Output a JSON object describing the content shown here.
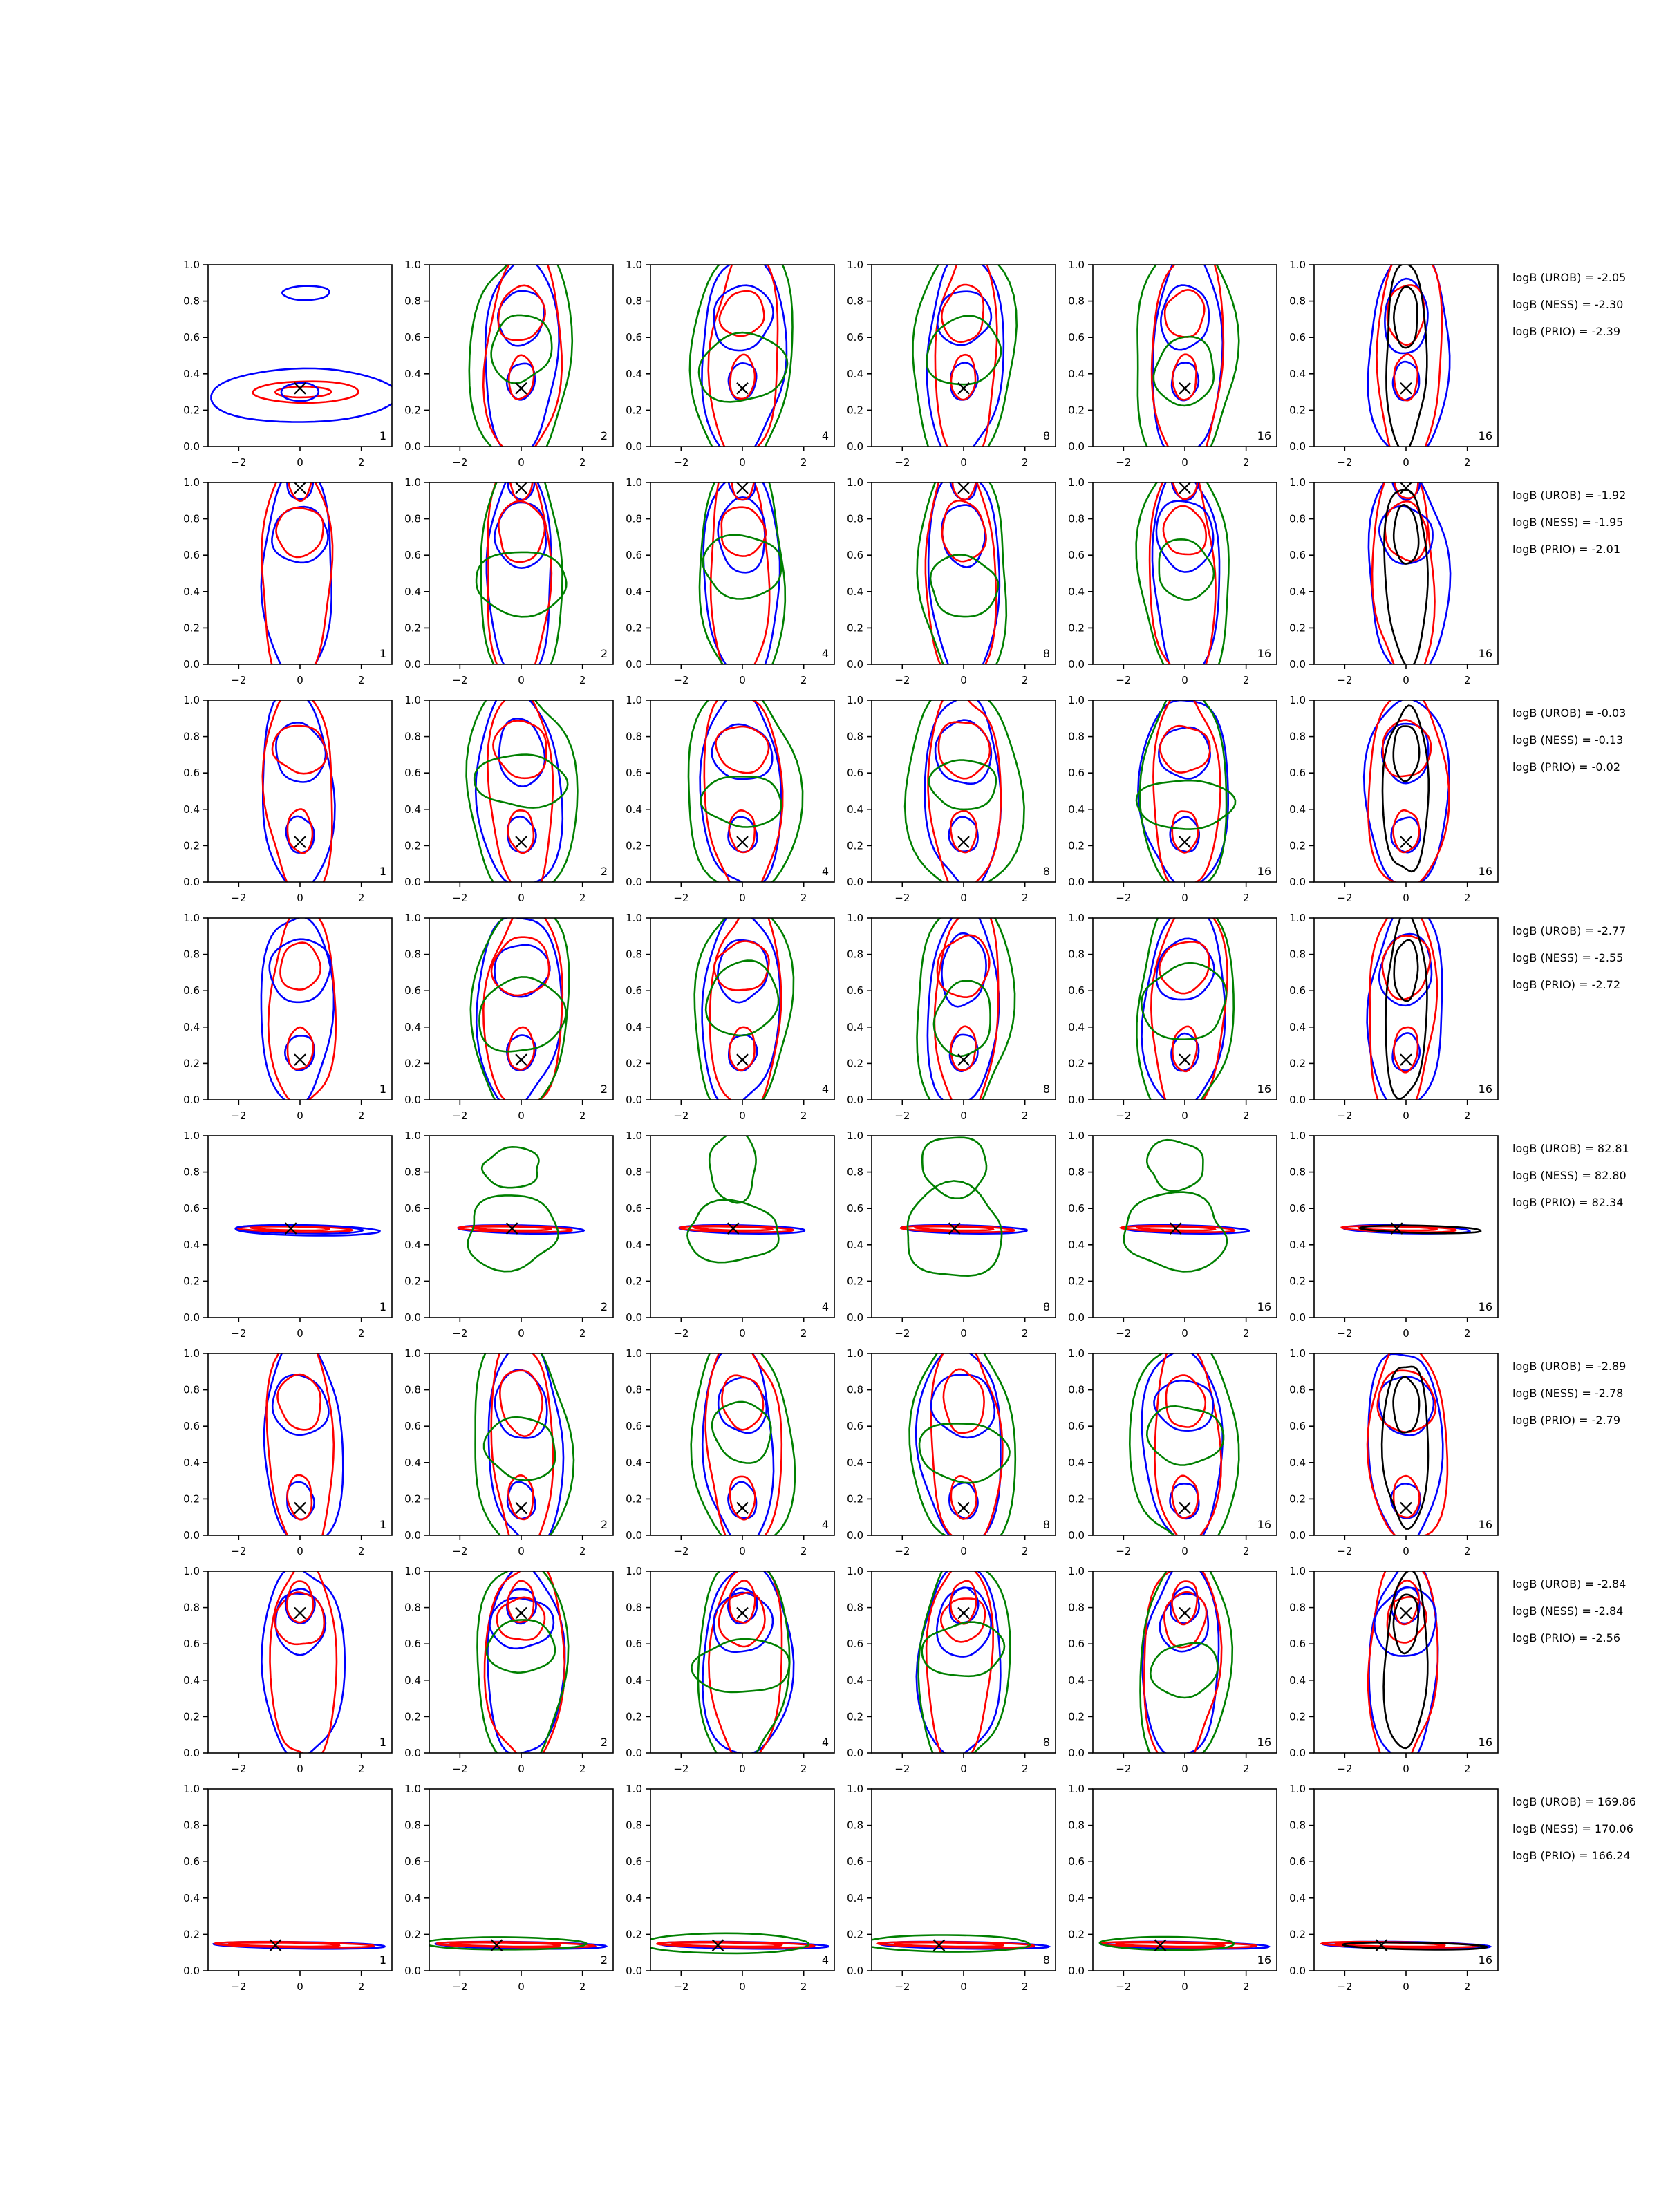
{
  "chart_data": {
    "type": "contour-grid",
    "rows": 8,
    "cols": 6,
    "xlim": [
      -3,
      3
    ],
    "ylim": [
      0,
      1
    ],
    "x_ticks": [
      -2,
      0,
      2
    ],
    "x_tick_labels": [
      "−2",
      "0",
      "2"
    ],
    "y_ticks": [
      0,
      0.2,
      0.4,
      0.6,
      0.8,
      1
    ],
    "y_tick_labels": [
      "0.0",
      "0.2",
      "0.4",
      "0.6",
      "0.8",
      "1.0"
    ],
    "panel_labels": [
      "1",
      "2",
      "4",
      "8",
      "16",
      "16"
    ],
    "series_colors": {
      "UROB": "#0000ff",
      "PRIO": "#ff0000",
      "NESS": "#008000",
      "reference": "#000000"
    },
    "markers": [
      {
        "x": 0,
        "y": 0.32
      },
      {
        "x": 0,
        "y": 0.97
      },
      {
        "x": 0,
        "y": 0.22
      },
      {
        "x": 0,
        "y": 0.22
      },
      {
        "x": -0.3,
        "y": 0.49
      },
      {
        "x": 0,
        "y": 0.15
      },
      {
        "x": 0,
        "y": 0.77
      },
      {
        "x": -0.8,
        "y": 0.14
      }
    ],
    "log_evidence": [
      [
        "logB (UROB) = -2.05",
        "logB (NESS) = -2.30",
        "logB (PRIO) = -2.39"
      ],
      [
        "logB (UROB) = -1.92",
        "logB (NESS) = -1.95",
        "logB (PRIO) = -2.01"
      ],
      [
        "logB (UROB) = -0.03",
        "logB (NESS) = -0.13",
        "logB (PRIO) = -0.02"
      ],
      [
        "logB (UROB) = -2.77",
        "logB (NESS) = -2.55",
        "logB (PRIO) = -2.72"
      ],
      [
        "logB (UROB) = 82.81",
        "logB (NESS) = 82.80",
        "logB (PRIO) = 82.34"
      ],
      [
        "logB (UROB) = -2.89",
        "logB (NESS) = -2.78",
        "logB (PRIO) = -2.79"
      ],
      [
        "logB (UROB) = -2.84",
        "logB (NESS) = -2.84",
        "logB (PRIO) = -2.56"
      ],
      [
        "logB (UROB) = 169.86",
        "logB (NESS) = 170.06",
        "logB (PRIO) = 166.24"
      ]
    ]
  }
}
